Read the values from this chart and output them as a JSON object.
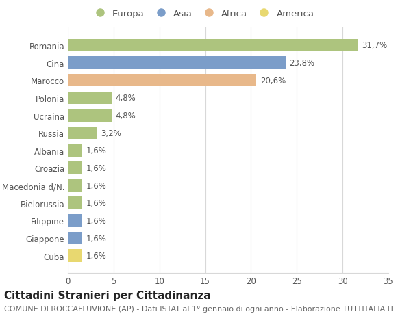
{
  "countries": [
    "Romania",
    "Cina",
    "Marocco",
    "Polonia",
    "Ucraina",
    "Russia",
    "Albania",
    "Croazia",
    "Macedonia d/N.",
    "Bielorussia",
    "Filippine",
    "Giappone",
    "Cuba"
  ],
  "values": [
    31.7,
    23.8,
    20.6,
    4.8,
    4.8,
    3.2,
    1.6,
    1.6,
    1.6,
    1.6,
    1.6,
    1.6,
    1.6
  ],
  "labels": [
    "31,7%",
    "23,8%",
    "20,6%",
    "4,8%",
    "4,8%",
    "3,2%",
    "1,6%",
    "1,6%",
    "1,6%",
    "1,6%",
    "1,6%",
    "1,6%",
    "1,6%"
  ],
  "continents": [
    "Europa",
    "Asia",
    "Africa",
    "Europa",
    "Europa",
    "Europa",
    "Europa",
    "Europa",
    "Europa",
    "Europa",
    "Asia",
    "Asia",
    "America"
  ],
  "colors": {
    "Europa": "#adc47e",
    "Asia": "#7b9dc9",
    "Africa": "#e8b88a",
    "America": "#e8d870"
  },
  "legend_order": [
    "Europa",
    "Asia",
    "Africa",
    "America"
  ],
  "title": "Cittadini Stranieri per Cittadinanza",
  "subtitle": "COMUNE DI ROCCAFLUVIONE (AP) - Dati ISTAT al 1° gennaio di ogni anno - Elaborazione TUTTITALIA.IT",
  "xlim": [
    0,
    35
  ],
  "xticks": [
    0,
    5,
    10,
    15,
    20,
    25,
    30,
    35
  ],
  "background_color": "#ffffff",
  "grid_color": "#d8d8d8",
  "bar_height": 0.72,
  "title_fontsize": 11,
  "subtitle_fontsize": 8,
  "label_fontsize": 8.5,
  "tick_fontsize": 8.5,
  "legend_fontsize": 9.5
}
